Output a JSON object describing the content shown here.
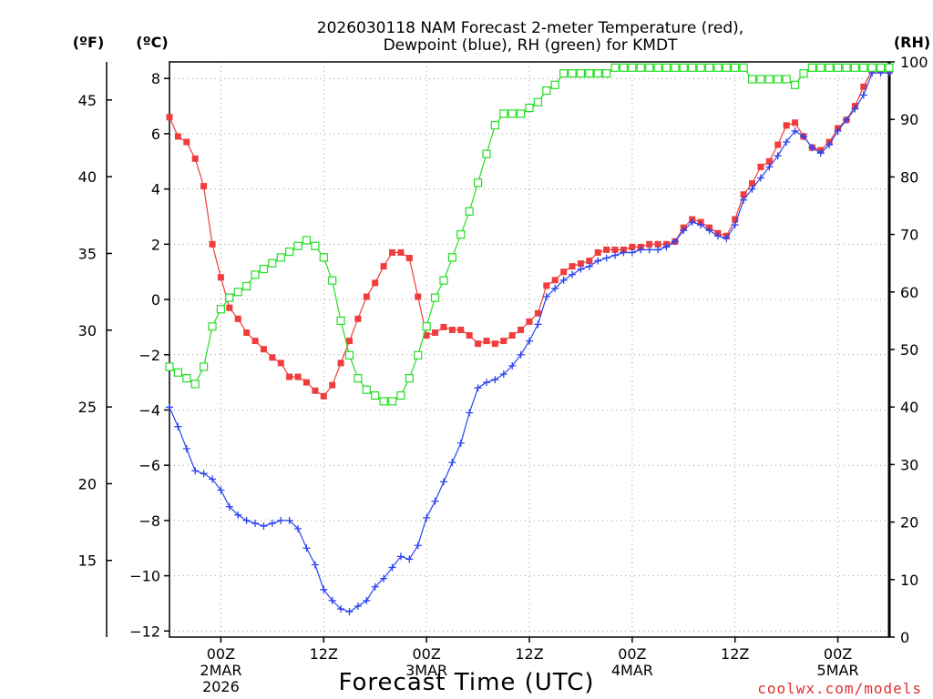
{
  "chart_data": {
    "type": "line",
    "title_lines": [
      "2026030118 NAM Forecast 2-meter Temperature (red),",
      "Dewpoint (blue), RH (green) for KMDT"
    ],
    "units": {
      "left_f": "(ºF)",
      "left_c": "(ºC)",
      "right_rh": "(RH)"
    },
    "xlabel": "Forecast Time (UTC)",
    "credit": "coolwx.com/models",
    "x_unit": "forecast hour",
    "xlim": [
      0,
      84
    ],
    "ylim_c": [
      -12.22,
      8.6
    ],
    "ylim_rh": [
      0,
      100
    ],
    "x_ticks": [
      {
        "x": 6,
        "lines": [
          "00Z",
          "2MAR",
          "2026"
        ]
      },
      {
        "x": 18,
        "lines": [
          "12Z"
        ]
      },
      {
        "x": 30,
        "lines": [
          "00Z",
          "3MAR"
        ]
      },
      {
        "x": 42,
        "lines": [
          "12Z"
        ]
      },
      {
        "x": 54,
        "lines": [
          "00Z",
          "4MAR"
        ]
      },
      {
        "x": 66,
        "lines": [
          "12Z"
        ]
      },
      {
        "x": 78,
        "lines": [
          "00Z",
          "5MAR"
        ]
      }
    ],
    "c_ticks": [
      8,
      6,
      4,
      2,
      0,
      -2,
      -4,
      -6,
      -8,
      -10,
      -12
    ],
    "c_tick_labels": [
      "8",
      "6",
      "4",
      "2",
      "0",
      "−2",
      "−4",
      "−6",
      "−8",
      "−10",
      "−12"
    ],
    "f_ticks": [
      45,
      40,
      35,
      30,
      25,
      20,
      15
    ],
    "f_tick_labels": [
      "45",
      "40",
      "35",
      "30",
      "25",
      "20",
      "15"
    ],
    "rh_ticks": [
      100,
      90,
      80,
      70,
      60,
      50,
      40,
      30,
      20,
      10,
      0
    ],
    "rh_tick_labels": [
      "100",
      "90",
      "80",
      "70",
      "60",
      "50",
      "40",
      "30",
      "20",
      "10",
      "0"
    ],
    "series": [
      {
        "name": "2-meter Temperature",
        "axis": "celsius",
        "color": "#f03c3c",
        "marker": "filled-square",
        "x": [
          0,
          1,
          2,
          3,
          4,
          5,
          6,
          7,
          8,
          9,
          10,
          11,
          12,
          13,
          14,
          15,
          16,
          17,
          18,
          19,
          20,
          21,
          22,
          23,
          24,
          25,
          26,
          27,
          28,
          29,
          30,
          31,
          32,
          33,
          34,
          35,
          36,
          37,
          38,
          39,
          40,
          41,
          42,
          43,
          44,
          45,
          46,
          47,
          48,
          49,
          50,
          51,
          52,
          53,
          54,
          55,
          56,
          57,
          58,
          59,
          60,
          61,
          62,
          63,
          64,
          65,
          66,
          67,
          68,
          69,
          70,
          71,
          72,
          73,
          74,
          75,
          76,
          77,
          78,
          79,
          80,
          81,
          82,
          83,
          84
        ],
        "values": [
          6.6,
          5.9,
          5.7,
          5.1,
          4.1,
          2.0,
          0.8,
          -0.3,
          -0.7,
          -1.2,
          -1.5,
          -1.8,
          -2.1,
          -2.3,
          -2.8,
          -2.8,
          -3.0,
          -3.3,
          -3.5,
          -3.1,
          -2.3,
          -1.5,
          -0.7,
          0.1,
          0.6,
          1.2,
          1.7,
          1.7,
          1.5,
          0.1,
          -1.3,
          -1.2,
          -1.0,
          -1.1,
          -1.1,
          -1.3,
          -1.6,
          -1.5,
          -1.6,
          -1.5,
          -1.3,
          -1.1,
          -0.8,
          -0.5,
          0.5,
          0.7,
          1.0,
          1.2,
          1.3,
          1.4,
          1.7,
          1.8,
          1.8,
          1.8,
          1.9,
          1.9,
          2.0,
          2.0,
          2.0,
          2.1,
          2.6,
          2.9,
          2.8,
          2.6,
          2.4,
          2.3,
          2.9,
          3.8,
          4.2,
          4.8,
          5.0,
          5.6,
          6.3,
          6.4,
          5.9,
          5.5,
          5.4,
          5.7,
          6.2,
          6.5,
          7.0,
          7.7,
          8.3,
          8.3,
          8.3
        ]
      },
      {
        "name": "Dewpoint",
        "axis": "celsius",
        "color": "#2a43f0",
        "marker": "plus",
        "x": [
          0,
          1,
          2,
          3,
          4,
          5,
          6,
          7,
          8,
          9,
          10,
          11,
          12,
          13,
          14,
          15,
          16,
          17,
          18,
          19,
          20,
          21,
          22,
          23,
          24,
          25,
          26,
          27,
          28,
          29,
          30,
          31,
          32,
          33,
          34,
          35,
          36,
          37,
          38,
          39,
          40,
          41,
          42,
          43,
          44,
          45,
          46,
          47,
          48,
          49,
          50,
          51,
          52,
          53,
          54,
          55,
          56,
          57,
          58,
          59,
          60,
          61,
          62,
          63,
          64,
          65,
          66,
          67,
          68,
          69,
          70,
          71,
          72,
          73,
          74,
          75,
          76,
          77,
          78,
          79,
          80,
          81,
          82,
          83,
          84
        ],
        "values": [
          -3.9,
          -4.6,
          -5.4,
          -6.2,
          -6.3,
          -6.5,
          -6.9,
          -7.5,
          -7.8,
          -8.0,
          -8.1,
          -8.2,
          -8.1,
          -8.0,
          -8.0,
          -8.3,
          -9.0,
          -9.6,
          -10.5,
          -10.9,
          -11.2,
          -11.3,
          -11.1,
          -10.9,
          -10.4,
          -10.1,
          -9.7,
          -9.3,
          -9.4,
          -8.9,
          -7.9,
          -7.3,
          -6.6,
          -5.9,
          -5.2,
          -4.1,
          -3.2,
          -3.0,
          -2.9,
          -2.7,
          -2.4,
          -2.0,
          -1.5,
          -0.9,
          0.1,
          0.4,
          0.7,
          0.9,
          1.1,
          1.2,
          1.4,
          1.5,
          1.6,
          1.7,
          1.7,
          1.8,
          1.8,
          1.8,
          1.9,
          2.1,
          2.5,
          2.8,
          2.7,
          2.5,
          2.3,
          2.2,
          2.7,
          3.6,
          4.0,
          4.4,
          4.8,
          5.2,
          5.7,
          6.1,
          5.9,
          5.5,
          5.3,
          5.6,
          6.1,
          6.5,
          6.9,
          7.4,
          8.2,
          8.2,
          8.2
        ]
      },
      {
        "name": "RH",
        "axis": "rh",
        "color": "#24de24",
        "marker": "open-square",
        "x": [
          0,
          1,
          2,
          3,
          4,
          5,
          6,
          7,
          8,
          9,
          10,
          11,
          12,
          13,
          14,
          15,
          16,
          17,
          18,
          19,
          20,
          21,
          22,
          23,
          24,
          25,
          26,
          27,
          28,
          29,
          30,
          31,
          32,
          33,
          34,
          35,
          36,
          37,
          38,
          39,
          40,
          41,
          42,
          43,
          44,
          45,
          46,
          47,
          48,
          49,
          50,
          51,
          52,
          53,
          54,
          55,
          56,
          57,
          58,
          59,
          60,
          61,
          62,
          63,
          64,
          65,
          66,
          67,
          68,
          69,
          70,
          71,
          72,
          73,
          74,
          75,
          76,
          77,
          78,
          79,
          80,
          81,
          82,
          83,
          84
        ],
        "values": [
          47,
          46,
          45,
          44,
          47,
          54,
          57,
          59,
          60,
          61,
          63,
          64,
          65,
          66,
          67,
          68,
          69,
          68,
          66,
          62,
          55,
          49,
          45,
          43,
          42,
          41,
          41,
          42,
          45,
          49,
          54,
          59,
          62,
          66,
          70,
          74,
          79,
          84,
          89,
          91,
          91,
          91,
          92,
          93,
          95,
          96,
          98,
          98,
          98,
          98,
          98,
          98,
          99,
          99,
          99,
          99,
          99,
          99,
          99,
          99,
          99,
          99,
          99,
          99,
          99,
          99,
          99,
          99,
          97,
          97,
          97,
          97,
          97,
          96,
          98,
          99,
          99,
          99,
          99,
          99,
          99,
          99,
          99,
          99,
          99
        ]
      }
    ]
  }
}
